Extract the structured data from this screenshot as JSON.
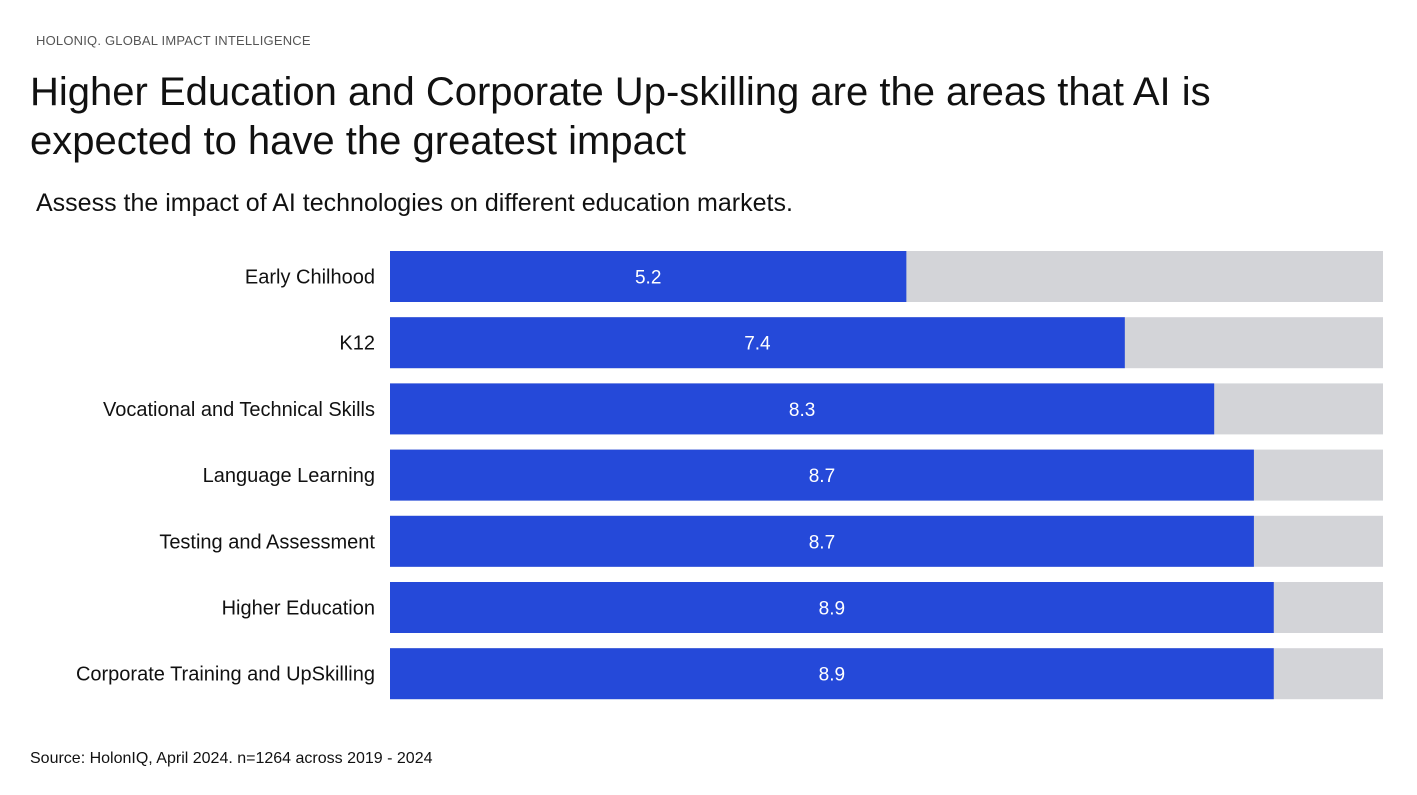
{
  "header": {
    "brand": "HOLONIQ. GLOBAL IMPACT INTELLIGENCE",
    "title": "Higher Education and Corporate Up-skilling are the areas that AI is expected to have the greatest impact",
    "subtitle": "Assess the impact of AI technologies on different education markets."
  },
  "footer": {
    "source": "Source: HolonIQ, April 2024. n=1264 across 2019 - 2024"
  },
  "colors": {
    "bar": "#2549d9",
    "track": "#d3d4d8",
    "value_label": "#ffffff",
    "category_label": "#111111"
  },
  "chart_data": {
    "type": "bar",
    "orientation": "horizontal",
    "categories": [
      "Early Chilhood",
      "K12",
      "Vocational and Technical Skills",
      "Language Learning",
      "Testing and Assessment",
      "Higher Education",
      "Corporate Training and UpSkilling"
    ],
    "values": [
      5.2,
      7.4,
      8.3,
      8.7,
      8.7,
      8.9,
      8.9
    ],
    "value_labels": [
      "5.2",
      "7.4",
      "8.3",
      "8.7",
      "8.7",
      "8.9",
      "8.9"
    ],
    "xlim": [
      0,
      10
    ],
    "grid": false,
    "legend": "none"
  }
}
